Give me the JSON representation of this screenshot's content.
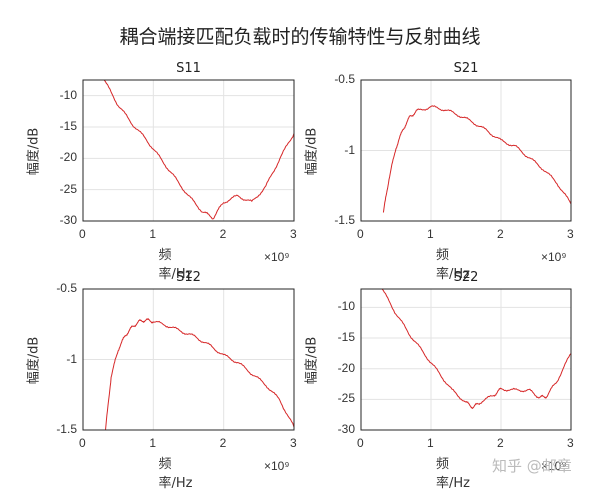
{
  "figure": {
    "title": "耦合端接匹配负载时的传输特性与反射曲线",
    "watermark": "知乎 @邮章"
  },
  "chart_data": [
    {
      "type": "line",
      "title": "S11",
      "xlabel": "频率/Hz",
      "ylabel": "幅度/dB",
      "x_exponent": "×10⁹",
      "xlim": [
        0,
        3
      ],
      "ylim": [
        -30,
        -7.5
      ],
      "xticks": [
        "0",
        "1",
        "2",
        "3"
      ],
      "yticks": [
        "-10",
        "-15",
        "-20",
        "-25",
        "-30"
      ],
      "grid": true,
      "color": "#d62728",
      "x": [
        0.3,
        0.5,
        0.7,
        0.9,
        1.1,
        1.3,
        1.5,
        1.7,
        1.85,
        2.0,
        2.2,
        2.4,
        2.6,
        2.8,
        3.0
      ],
      "values": [
        -7.5,
        -11.5,
        -14.5,
        -17,
        -20,
        -23,
        -26,
        -28.5,
        -29.5,
        -27,
        -26,
        -27,
        -24.5,
        -20,
        -16
      ]
    },
    {
      "type": "line",
      "title": "S21",
      "xlabel": "频率/Hz",
      "ylabel": "幅度/dB",
      "x_exponent": "×10⁹",
      "xlim": [
        0,
        3
      ],
      "ylim": [
        -1.5,
        -0.5
      ],
      "xticks": [
        "0",
        "1",
        "2",
        "3"
      ],
      "yticks": [
        "-0.5",
        "-1",
        "-1.5"
      ],
      "grid": true,
      "color": "#d62728",
      "x": [
        0.32,
        0.4,
        0.5,
        0.6,
        0.7,
        0.8,
        1.0,
        1.2,
        1.4,
        1.6,
        1.8,
        2.0,
        2.2,
        2.4,
        2.6,
        2.8,
        3.0
      ],
      "values": [
        -1.44,
        -1.2,
        -0.98,
        -0.85,
        -0.76,
        -0.72,
        -0.69,
        -0.71,
        -0.75,
        -0.8,
        -0.86,
        -0.93,
        -0.97,
        -1.05,
        -1.13,
        -1.23,
        -1.38
      ]
    },
    {
      "type": "line",
      "title": "S12",
      "xlabel": "频率/Hz",
      "ylabel": "幅度/dB",
      "x_exponent": "×10⁹",
      "xlim": [
        0,
        3
      ],
      "ylim": [
        -1.5,
        -0.5
      ],
      "xticks": [
        "0",
        "1",
        "2",
        "3"
      ],
      "yticks": [
        "-0.5",
        "-1",
        "-1.5"
      ],
      "grid": true,
      "color": "#d62728",
      "x": [
        0.32,
        0.4,
        0.5,
        0.6,
        0.7,
        0.8,
        0.9,
        1.0,
        1.2,
        1.4,
        1.6,
        1.8,
        2.0,
        2.2,
        2.4,
        2.6,
        2.8,
        3.0
      ],
      "values": [
        -1.5,
        -1.12,
        -0.93,
        -0.83,
        -0.77,
        -0.73,
        -0.72,
        -0.73,
        -0.76,
        -0.8,
        -0.84,
        -0.9,
        -0.97,
        -1.02,
        -1.1,
        -1.18,
        -1.29,
        -1.48
      ]
    },
    {
      "type": "line",
      "title": "S22",
      "xlabel": "频率/Hz",
      "ylabel": "幅度/dB",
      "x_exponent": "×10⁹",
      "xlim": [
        0,
        3
      ],
      "ylim": [
        -30,
        -7
      ],
      "xticks": [
        "0",
        "1",
        "2",
        "3"
      ],
      "yticks": [
        "-10",
        "-15",
        "-20",
        "-25",
        "-30"
      ],
      "grid": true,
      "color": "#d62728",
      "x": [
        0.3,
        0.5,
        0.7,
        0.9,
        1.1,
        1.3,
        1.5,
        1.6,
        1.7,
        1.9,
        2.0,
        2.2,
        2.4,
        2.55,
        2.65,
        2.8,
        3.0
      ],
      "values": [
        -7,
        -11,
        -14.5,
        -17.5,
        -20.5,
        -23.5,
        -25.5,
        -26.3,
        -25.5,
        -24.3,
        -23.3,
        -23.5,
        -23.5,
        -24.7,
        -24.5,
        -22,
        -17.5
      ]
    }
  ]
}
